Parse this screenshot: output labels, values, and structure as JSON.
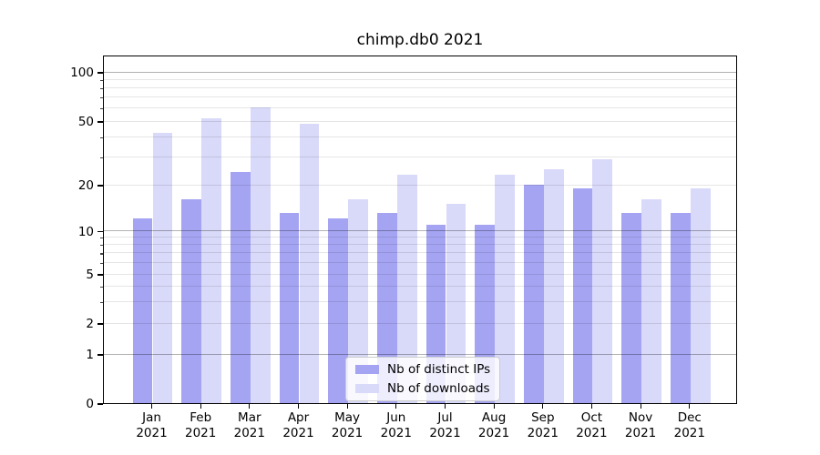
{
  "title": "chimp.db0 2021",
  "chart_data": {
    "type": "bar",
    "title": "chimp.db0 2021",
    "categories": [
      "Jan 2021",
      "Feb 2021",
      "Mar 2021",
      "Apr 2021",
      "May 2021",
      "Jun 2021",
      "Jul 2021",
      "Aug 2021",
      "Sep 2021",
      "Oct 2021",
      "Nov 2021",
      "Dec 2021"
    ],
    "months": [
      "Jan",
      "Feb",
      "Mar",
      "Apr",
      "May",
      "Jun",
      "Jul",
      "Aug",
      "Sep",
      "Oct",
      "Nov",
      "Dec"
    ],
    "year_label": "2021",
    "series": [
      {
        "name": "Nb of distinct IPs",
        "color": "#a4a4f2",
        "values": [
          12,
          16,
          24,
          13,
          12,
          13,
          11,
          11,
          20,
          19,
          13,
          13
        ]
      },
      {
        "name": "Nb of downloads",
        "color": "#d9d9f9",
        "values": [
          42,
          52,
          61,
          48,
          16,
          23,
          15,
          23,
          25,
          29,
          16,
          19
        ]
      }
    ],
    "y_axis": {
      "scale": "symlog",
      "ticks": [
        0,
        1,
        2,
        5,
        10,
        20,
        50,
        100
      ],
      "major_grid_values": [
        1,
        10,
        100
      ],
      "minor_grid_values": [
        2,
        3,
        4,
        5,
        6,
        7,
        8,
        9,
        20,
        30,
        40,
        50,
        60,
        70,
        80,
        90
      ],
      "range": [
        0,
        126
      ]
    },
    "xlabel": "",
    "ylabel": "",
    "grid": true,
    "legend_position": "lower center"
  },
  "colors": {
    "distinct_ips": "#a4a4f2",
    "downloads": "#d9d9f9",
    "major_grid": "#b4b4b4",
    "minor_grid": "#e4e4e4",
    "spine": "#000000",
    "background": "#ffffff"
  }
}
